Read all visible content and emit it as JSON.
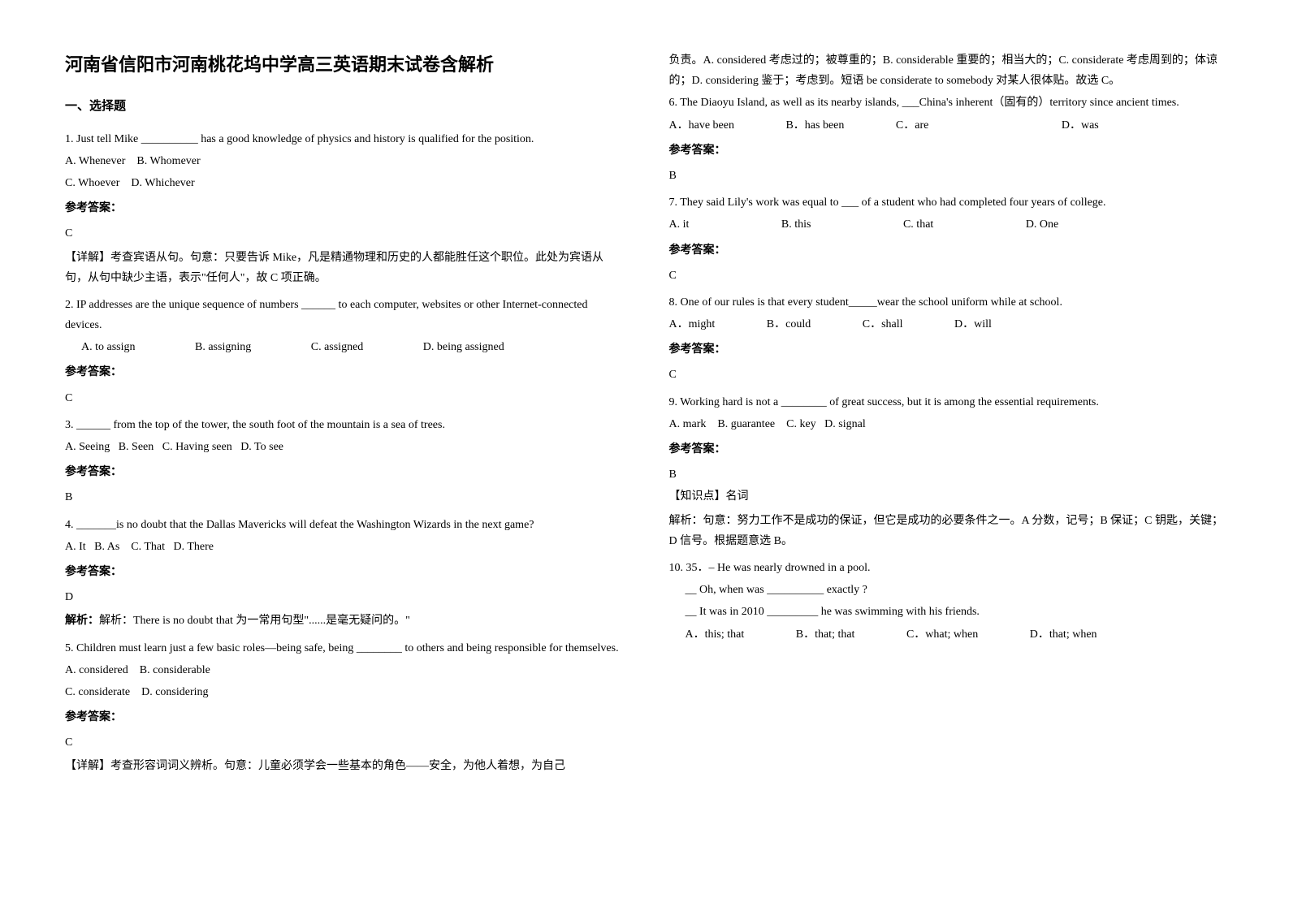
{
  "title": "河南省信阳市河南桃花坞中学高三英语期末试卷含解析",
  "section_heading": "一、选择题",
  "left": {
    "q1": {
      "text": "1. Just tell Mike __________ has a good knowledge of physics and history is qualified for the position.",
      "optA": "A. Whenever",
      "optB": "B. Whomever",
      "optC": "C. Whoever",
      "optD": "D. Whichever",
      "answer_label": "参考答案：",
      "answer": "C",
      "explanation1": "【详解】考查宾语从句。句意：只要告诉 Mike，凡是精通物理和历史的人都能胜任这个职位。此处为宾语从句，从句中缺少主语，表示\"任何人\"，故 C 项正确。"
    },
    "q2": {
      "text": "2. IP addresses are the unique sequence of numbers ______ to each computer, websites or other Internet-connected devices.",
      "optA": "A. to assign",
      "optB": "B. assigning",
      "optC": "C. assigned",
      "optD": "D. being assigned",
      "answer_label": "参考答案：",
      "answer": "C"
    },
    "q3": {
      "text": "3. ______ from the top of the tower, the south foot of the mountain is a sea of trees.",
      "options": "A. Seeing   B. Seen   C. Having seen   D. To see",
      "answer_label": "参考答案：",
      "answer": "B"
    },
    "q4": {
      "text": "4. _______is no doubt that the Dallas Mavericks will defeat the Washington Wizards in the next game?",
      "options": "A. It   B. As    C. That   D. There",
      "answer_label": "参考答案：",
      "answer": "D",
      "explanation": "解析：There is no doubt that 为一常用句型\"......是毫无疑问的。\""
    },
    "q5": {
      "text": "5. Children must learn just a few basic roles—being safe, being ________ to others and being responsible for themselves.",
      "optA": "A. considered",
      "optB": "B. considerable",
      "optC": "C. considerate",
      "optD": "D. considering",
      "answer_label": "参考答案：",
      "answer": "C",
      "explanation": "【详解】考查形容词词义辨析。句意：儿童必须学会一些基本的角色——安全，为他人着想，为自己"
    }
  },
  "right": {
    "q5_cont": "负责。A. considered 考虑过的；被尊重的；B. considerable 重要的；相当大的；C. considerate 考虑周到的；体谅的；D. considering 鉴于；考虑到。短语 be considerate to somebody 对某人很体贴。故选 C。",
    "q6": {
      "text": "6. The Diaoyu Island, as well as its nearby islands, ___China's inherent（固有的）territory since ancient times.",
      "optA": "A．have been",
      "optB": "B．has been",
      "optC": "C．are",
      "optD": "D．was",
      "answer_label": "参考答案：",
      "answer": "B"
    },
    "q7": {
      "text": "7. They said Lily's work was equal to ___ of a student who had completed four years of college.",
      "optA": "A. it",
      "optB": "B. this",
      "optC": "C. that",
      "optD": "D. One",
      "answer_label": "参考答案：",
      "answer": "C"
    },
    "q8": {
      "text": "8. One of our rules is that every student_____wear the school uniform while at school.",
      "optA": "A．might",
      "optB": "B．could",
      "optC": "C．shall",
      "optD": "D．will",
      "answer_label": "参考答案：",
      "answer": "C"
    },
    "q9": {
      "text": "9. Working hard is not a ________ of great success, but it is among the essential requirements.",
      "options": "A. mark    B. guarantee    C. key   D. signal",
      "answer_label": "参考答案：",
      "answer": "B",
      "knowledge": "【知识点】名词",
      "explanation": "解析：句意：努力工作不是成功的保证，但它是成功的必要条件之一。A 分数，记号；B 保证；C 钥匙，关键；D 信号。根据题意选 B。"
    },
    "q10": {
      "text1": "10. 35．– He was nearly drowned in a pool.",
      "text2": "__ Oh, when was __________ exactly ?",
      "text3": "__ It was in 2010 _________ he was swimming with his friends.",
      "optA": "A．this; that",
      "optB": "B．that; that",
      "optC": "C．what; when",
      "optD": "D．that; when"
    }
  }
}
